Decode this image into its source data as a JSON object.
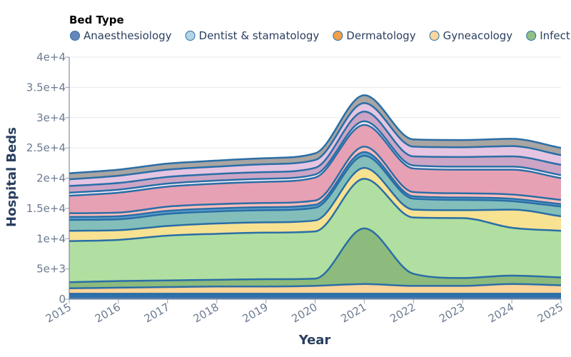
{
  "chart_data": {
    "type": "area",
    "stacked": true,
    "interpolation": "smooth",
    "title": "",
    "xlabel": "Year",
    "ylabel": "Hospital Beds",
    "legend_title": "Bed Type",
    "legend_position": "top",
    "grid": true,
    "x": [
      2015,
      2016,
      2017,
      2018,
      2019,
      2020,
      2021,
      2022,
      2023,
      2024,
      2025
    ],
    "x_tick_labels": [
      "2015",
      "2016",
      "2017",
      "2018",
      "2019",
      "2020",
      "2021",
      "2022",
      "2023",
      "2024",
      "2025"
    ],
    "ylim": [
      0,
      40000
    ],
    "y_ticks": [
      0,
      5000,
      10000,
      15000,
      20000,
      25000,
      30000,
      35000,
      40000
    ],
    "y_tick_labels": [
      "0",
      "5e+3",
      "1e+4",
      "1.5e+4",
      "2e+4",
      "2.5e+4",
      "3e+4",
      "3.5e+4",
      "4e+4"
    ],
    "series": [
      {
        "name": "Anaesthesiology",
        "color": "#4c72b0",
        "values": [
          400,
          400,
          400,
          400,
          400,
          400,
          400,
          400,
          400,
          400,
          400
        ]
      },
      {
        "name": "Dentist & stamatology",
        "color": "#a6cee3",
        "values": [
          300,
          300,
          300,
          300,
          300,
          300,
          300,
          300,
          300,
          300,
          300
        ]
      },
      {
        "name": "Dermatology",
        "color": "#f28e2b",
        "values": [
          200,
          200,
          200,
          200,
          200,
          200,
          200,
          200,
          200,
          200,
          200
        ]
      },
      {
        "name": "Gyneacology",
        "color": "#fdcf8e",
        "values": [
          900,
          1000,
          1100,
          1200,
          1200,
          1300,
          1600,
          1300,
          1300,
          1600,
          1400
        ]
      },
      {
        "name": "Infectious disease",
        "color": "#7fb46f",
        "values": [
          1000,
          1100,
          1100,
          1100,
          1200,
          1200,
          9200,
          2000,
          1300,
          1400,
          1300
        ]
      },
      {
        "name": "",
        "color": "#a8dc97",
        "values": [
          6800,
          6800,
          7400,
          7600,
          7700,
          7800,
          8200,
          9300,
          9900,
          7900,
          7700
        ]
      },
      {
        "name": "",
        "color": "#f6df86",
        "values": [
          1700,
          1600,
          1600,
          1700,
          1700,
          1800,
          1800,
          1300,
          1300,
          3000,
          2400
        ]
      },
      {
        "name": "",
        "color": "#76b7b2",
        "values": [
          1800,
          1800,
          2000,
          2000,
          2000,
          2100,
          2000,
          1800,
          1700,
          1400,
          1600
        ]
      },
      {
        "name": "",
        "color": "#4e97c6",
        "values": [
          500,
          500,
          500,
          500,
          500,
          500,
          600,
          400,
          400,
          400,
          400
        ]
      },
      {
        "name": "",
        "color": "#ffb7b2",
        "values": [
          600,
          600,
          700,
          700,
          700,
          700,
          900,
          700,
          700,
          700,
          700
        ]
      },
      {
        "name": "",
        "color": "#e497ac",
        "values": [
          2900,
          3300,
          3300,
          3400,
          3500,
          3800,
          3600,
          3900,
          3900,
          4100,
          3600
        ]
      },
      {
        "name": "",
        "color": "#f4ecf5",
        "values": [
          500,
          500,
          500,
          500,
          500,
          500,
          600,
          500,
          500,
          500,
          500
        ]
      },
      {
        "name": "",
        "color": "#c79bc0",
        "values": [
          1100,
          1100,
          1100,
          1100,
          1100,
          1100,
          1600,
          1500,
          1600,
          1700,
          1700
        ]
      },
      {
        "name": "",
        "color": "#e2bfdf",
        "values": [
          1100,
          1200,
          1200,
          1200,
          1300,
          1300,
          1400,
          1600,
          1600,
          1700,
          1600
        ]
      },
      {
        "name": "",
        "color": "#a09b98",
        "values": [
          1000,
          1000,
          1000,
          1000,
          1000,
          1100,
          1300,
          1200,
          1200,
          1200,
          1200
        ]
      }
    ]
  }
}
